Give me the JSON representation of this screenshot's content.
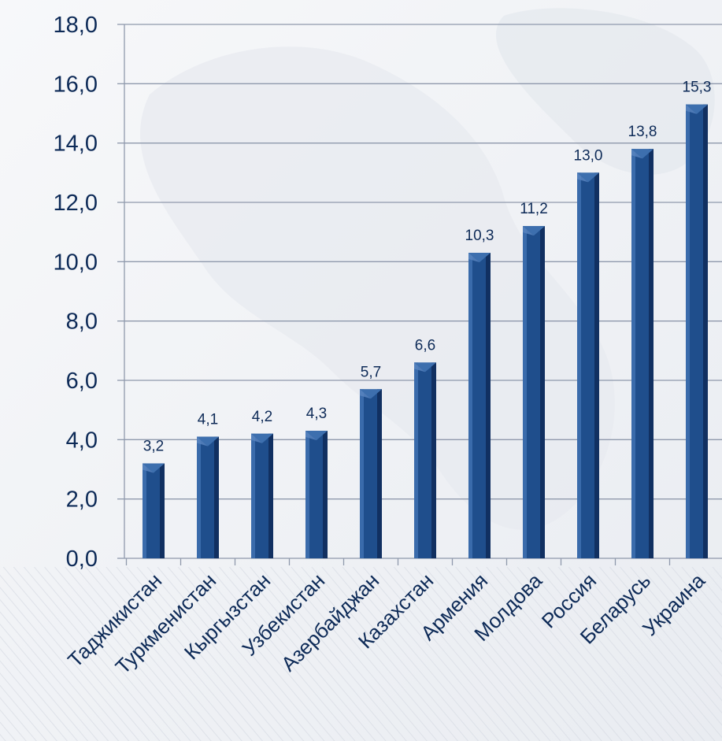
{
  "chart_data": {
    "type": "bar",
    "title": "",
    "xlabel": "",
    "ylabel": "",
    "categories": [
      "Таджикистан",
      "Туркменистан",
      "Кыргызстан",
      "Узбекистан",
      "Азербайджан",
      "Казахстан",
      "Армения",
      "Молдова",
      "Россия",
      "Беларусь",
      "Украина"
    ],
    "values": [
      3.2,
      4.1,
      4.2,
      4.3,
      5.7,
      6.6,
      10.3,
      11.2,
      13.0,
      13.8,
      15.3
    ],
    "value_labels": [
      "3,2",
      "4,1",
      "4,2",
      "4,3",
      "5,7",
      "6,6",
      "10,3",
      "11,2",
      "13,0",
      "13,8",
      "15,3"
    ],
    "ylim": [
      0,
      18
    ],
    "yticks": [
      0,
      2,
      4,
      6,
      8,
      10,
      12,
      14,
      16,
      18
    ],
    "ytick_labels": [
      "0,0",
      "2,0",
      "4,0",
      "6,0",
      "8,0",
      "10,0",
      "12,0",
      "14,0",
      "16,0",
      "18,0"
    ],
    "grid": true,
    "legend": "none",
    "colors": {
      "bar": "#1f4e8c",
      "bar_dark": "#0f2d5c",
      "bar_light": "#3d6fae",
      "text": "#0d2a57",
      "grid": "#8f99ac"
    }
  }
}
